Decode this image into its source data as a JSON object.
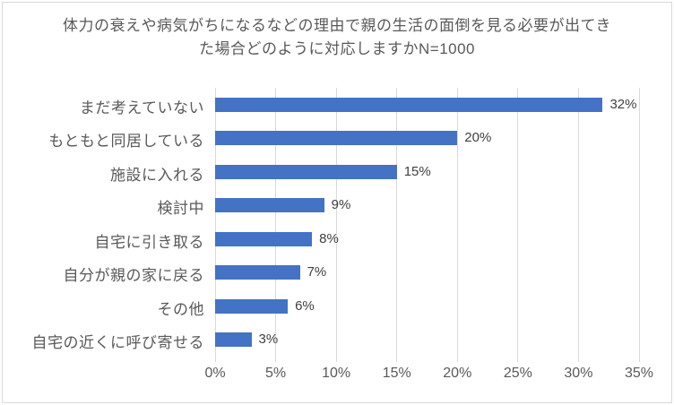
{
  "chart_data": {
    "type": "bar",
    "orientation": "horizontal",
    "title": "体力の衰えや病気がちになるなどの理由で親の生活の面倒を見る必要が出てきた場合どのように対応しますかN=1000",
    "title_lines": [
      "体力の衰えや病気がちになるなどの理由で親の生活の面倒を見る必要が出てき",
      "た場合どのように対応しますかN=1000"
    ],
    "sample_size_label": "N=1000",
    "categories": [
      "まだ考えていない",
      "もともと同居している",
      "施設に入れる",
      "検討中",
      "自宅に引き取る",
      "自分が親の家に戻る",
      "その他",
      "自宅の近くに呼び寄せる"
    ],
    "values": [
      32,
      20,
      15,
      9,
      8,
      7,
      6,
      3
    ],
    "data_labels": [
      "32%",
      "20%",
      "15%",
      "9%",
      "8%",
      "7%",
      "6%",
      "3%"
    ],
    "x_ticks": [
      "0%",
      "5%",
      "10%",
      "15%",
      "20%",
      "25%",
      "30%",
      "35%"
    ],
    "xlim": [
      0,
      35
    ],
    "grid": true,
    "legend": "none",
    "colors": {
      "bar": "#4472c4",
      "gridline": "#d9d9d9",
      "title_text": "#595959",
      "category_text": "#595959",
      "axis_text": "#595959",
      "data_label_text": "#404040",
      "frame_border": "#d9d9d9",
      "background": "#ffffff"
    }
  }
}
